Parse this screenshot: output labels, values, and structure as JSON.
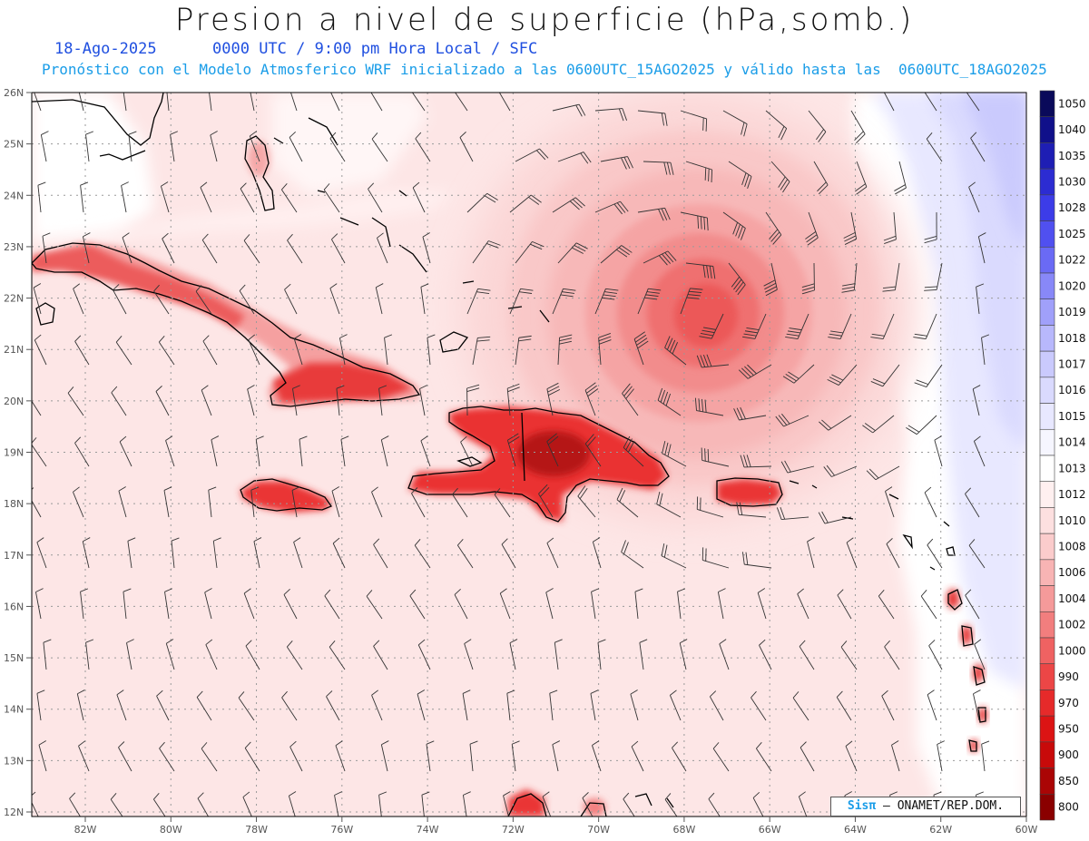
{
  "title": "Presion a nivel de superficie (hPa,somb.)",
  "date": "18-Ago-2025",
  "time_label": "0000 UTC / 9:00 pm Hora Local / SFC",
  "subtitle": "Pronóstico con el Modelo Atmosferico WRF inicializado a las 0600UTC_15AGO2025 y válido hasta las  0600UTC_18AGO2025",
  "credit": {
    "logo": "Sisπ",
    "text": "ONAMET/REP.DOM."
  },
  "lat_labels": [
    "26N",
    "25N",
    "24N",
    "23N",
    "22N",
    "21N",
    "20N",
    "19N",
    "18N",
    "17N",
    "16N",
    "15N",
    "14N",
    "13N",
    "12N"
  ],
  "lon_labels": [
    "82W",
    "80W",
    "78W",
    "76W",
    "74W",
    "72W",
    "70W",
    "68W",
    "66W",
    "64W",
    "62W",
    "60W"
  ],
  "colorbar": {
    "levels": [
      "1050",
      "1040",
      "1035",
      "1030",
      "1028",
      "1025",
      "1022",
      "1020",
      "1019",
      "1018",
      "1017",
      "1016",
      "1015",
      "1014",
      "1013",
      "1012",
      "1010",
      "1008",
      "1006",
      "1004",
      "1002",
      "1000",
      "990",
      "970",
      "950",
      "900",
      "850",
      "800"
    ],
    "colors": [
      "#0a0a5a",
      "#10108a",
      "#1e1eb4",
      "#2c2cd2",
      "#3c3ce8",
      "#5050f0",
      "#6a6af5",
      "#8888f8",
      "#a0a0fa",
      "#b8b8fc",
      "#cacafd",
      "#dadafe",
      "#e8e8ff",
      "#f6f6ff",
      "#ffffff",
      "#fff0f0",
      "#fde0e0",
      "#fbcccc",
      "#f8b4b4",
      "#f59a9a",
      "#f27e7e",
      "#ef6262",
      "#ec4646",
      "#e62a2a",
      "#dc1414",
      "#c80a0a",
      "#aa0505",
      "#8a0000"
    ]
  },
  "colors": {
    "land_outline": "#000000",
    "grid": "#999999",
    "barb": "#333333"
  }
}
